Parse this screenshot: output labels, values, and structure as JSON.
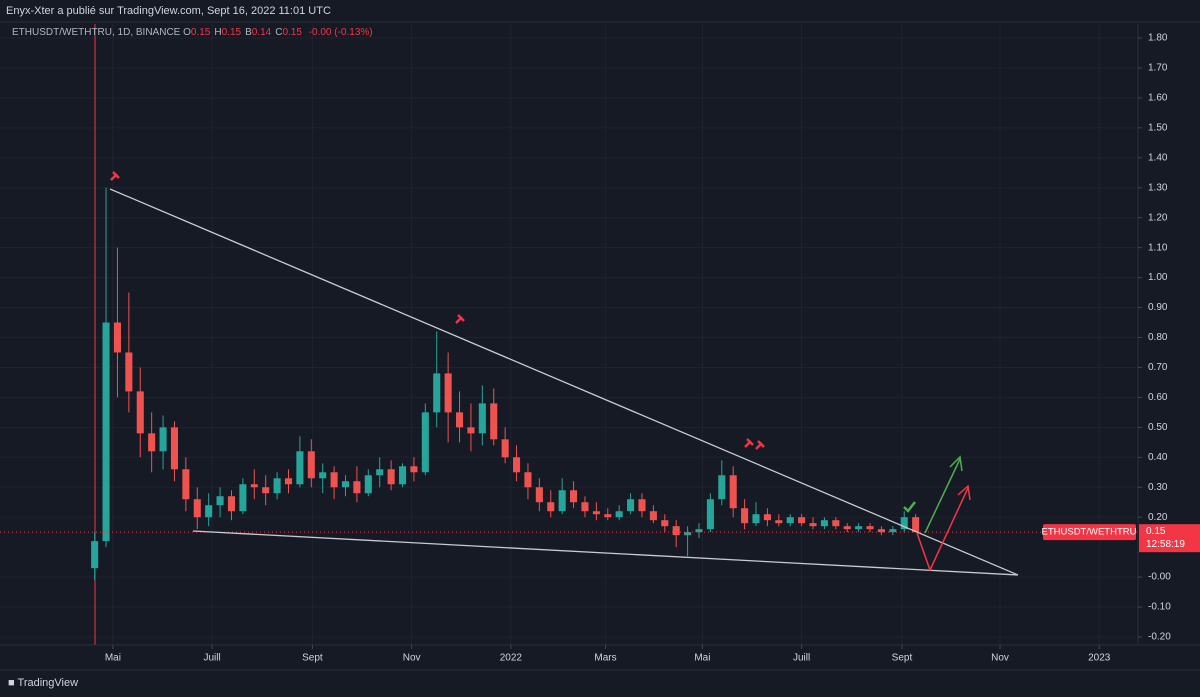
{
  "header": {
    "publisher": "Enyx-Xter a publié sur TradingView.com, Sept 16, 2022 11:01 UTC",
    "symbol": "ETHUSDT/WETHTRU, 1D, BINANCE",
    "ohlc": [
      {
        "key": "O",
        "value": "0.15"
      },
      {
        "key": "H",
        "value": "0.15"
      },
      {
        "key": "B",
        "value": "0.14"
      },
      {
        "key": "C",
        "value": "0.15"
      }
    ],
    "change": "-0.00 (-0.13%)"
  },
  "footer": {
    "brand": "TradingView"
  },
  "chart_data": {
    "type": "candlestick",
    "x": [
      0,
      1,
      2,
      3,
      4,
      5,
      6,
      7,
      8,
      9,
      10,
      11,
      12,
      13,
      14,
      15,
      16,
      17,
      18,
      19,
      20,
      21,
      22,
      23,
      24,
      25,
      26,
      27,
      28,
      29,
      30,
      31,
      32,
      33,
      34,
      35,
      36,
      37,
      38,
      39,
      40,
      41,
      42,
      43,
      44,
      45,
      46,
      47,
      48,
      49,
      50,
      51,
      52,
      53,
      54,
      55,
      56,
      57,
      58,
      59,
      60,
      61,
      62,
      63,
      64,
      65,
      66,
      67,
      68,
      69,
      70,
      71,
      72
    ],
    "open": [
      0.03,
      0.12,
      0.85,
      0.75,
      0.62,
      0.48,
      0.42,
      0.5,
      0.36,
      0.26,
      0.2,
      0.24,
      0.27,
      0.22,
      0.31,
      0.3,
      0.28,
      0.33,
      0.31,
      0.42,
      0.33,
      0.35,
      0.3,
      0.32,
      0.28,
      0.34,
      0.36,
      0.31,
      0.37,
      0.35,
      0.55,
      0.68,
      0.55,
      0.5,
      0.48,
      0.58,
      0.46,
      0.4,
      0.35,
      0.3,
      0.25,
      0.22,
      0.29,
      0.25,
      0.22,
      0.21,
      0.2,
      0.22,
      0.26,
      0.22,
      0.19,
      0.17,
      0.14,
      0.15,
      0.16,
      0.26,
      0.34,
      0.23,
      0.18,
      0.21,
      0.19,
      0.18,
      0.2,
      0.18,
      0.17,
      0.19,
      0.17,
      0.16,
      0.17,
      0.16,
      0.15,
      0.16,
      0.2
    ],
    "high": [
      0.15,
      1.3,
      1.1,
      0.95,
      0.7,
      0.55,
      0.54,
      0.52,
      0.4,
      0.3,
      0.28,
      0.3,
      0.29,
      0.33,
      0.36,
      0.34,
      0.35,
      0.36,
      0.47,
      0.46,
      0.38,
      0.37,
      0.34,
      0.37,
      0.36,
      0.4,
      0.39,
      0.38,
      0.4,
      0.58,
      0.82,
      0.75,
      0.62,
      0.58,
      0.64,
      0.63,
      0.5,
      0.44,
      0.38,
      0.33,
      0.29,
      0.33,
      0.32,
      0.27,
      0.25,
      0.23,
      0.24,
      0.28,
      0.28,
      0.24,
      0.21,
      0.19,
      0.17,
      0.18,
      0.28,
      0.39,
      0.37,
      0.26,
      0.25,
      0.23,
      0.21,
      0.21,
      0.21,
      0.2,
      0.2,
      0.2,
      0.18,
      0.18,
      0.18,
      0.17,
      0.17,
      0.22,
      0.21
    ],
    "low": [
      -0.01,
      0.1,
      0.6,
      0.55,
      0.4,
      0.35,
      0.36,
      0.32,
      0.22,
      0.16,
      0.17,
      0.2,
      0.19,
      0.21,
      0.26,
      0.24,
      0.26,
      0.28,
      0.3,
      0.3,
      0.28,
      0.26,
      0.27,
      0.25,
      0.27,
      0.3,
      0.29,
      0.3,
      0.32,
      0.34,
      0.5,
      0.45,
      0.45,
      0.42,
      0.44,
      0.44,
      0.38,
      0.32,
      0.26,
      0.22,
      0.2,
      0.21,
      0.23,
      0.2,
      0.19,
      0.19,
      0.19,
      0.21,
      0.2,
      0.18,
      0.15,
      0.1,
      0.07,
      0.13,
      0.15,
      0.24,
      0.2,
      0.16,
      0.17,
      0.17,
      0.17,
      0.17,
      0.17,
      0.16,
      0.16,
      0.16,
      0.15,
      0.15,
      0.15,
      0.14,
      0.14,
      0.15,
      0.15
    ],
    "close": [
      0.12,
      0.85,
      0.75,
      0.62,
      0.48,
      0.42,
      0.5,
      0.36,
      0.26,
      0.2,
      0.24,
      0.27,
      0.22,
      0.31,
      0.3,
      0.28,
      0.33,
      0.31,
      0.42,
      0.33,
      0.35,
      0.3,
      0.32,
      0.28,
      0.34,
      0.36,
      0.31,
      0.37,
      0.35,
      0.55,
      0.68,
      0.55,
      0.5,
      0.48,
      0.58,
      0.46,
      0.4,
      0.35,
      0.3,
      0.25,
      0.22,
      0.29,
      0.25,
      0.22,
      0.21,
      0.2,
      0.22,
      0.26,
      0.22,
      0.19,
      0.17,
      0.14,
      0.15,
      0.16,
      0.26,
      0.34,
      0.23,
      0.18,
      0.21,
      0.19,
      0.18,
      0.2,
      0.18,
      0.17,
      0.19,
      0.17,
      0.16,
      0.17,
      0.16,
      0.15,
      0.16,
      0.2,
      0.15
    ],
    "up_color": "#26a69a",
    "down_color": "#ef5350",
    "xlim": [
      -8.3,
      91.5
    ],
    "xticks": [
      {
        "value": 1.6,
        "label": "Mai"
      },
      {
        "value": 10.3,
        "label": "Juill"
      },
      {
        "value": 19.1,
        "label": "Sept"
      },
      {
        "value": 27.8,
        "label": "Nov"
      },
      {
        "value": 36.5,
        "label": "2022"
      },
      {
        "value": 44.8,
        "label": "Mars"
      },
      {
        "value": 53.3,
        "label": "Mai"
      },
      {
        "value": 62,
        "label": "Juill"
      },
      {
        "value": 70.8,
        "label": "Sept"
      },
      {
        "value": 79.4,
        "label": "Nov"
      },
      {
        "value": 88.1,
        "label": "2023"
      }
    ],
    "ylim": [
      -0.2,
      1.8
    ],
    "yticks": [
      {
        "value": 1.8,
        "label": "1.80"
      },
      {
        "value": 1.7,
        "label": "1.70"
      },
      {
        "value": 1.6,
        "label": "1.60"
      },
      {
        "value": 1.5,
        "label": "1.50"
      },
      {
        "value": 1.4,
        "label": "1.40"
      },
      {
        "value": 1.3,
        "label": "1.30"
      },
      {
        "value": 1.2,
        "label": "1.20"
      },
      {
        "value": 1.1,
        "label": "1.10"
      },
      {
        "value": 1.0,
        "label": "1.00"
      },
      {
        "value": 0.9,
        "label": "0.90"
      },
      {
        "value": 0.8,
        "label": "0.80"
      },
      {
        "value": 0.7,
        "label": "0.70"
      },
      {
        "value": 0.6,
        "label": "0.60"
      },
      {
        "value": 0.5,
        "label": "0.50"
      },
      {
        "value": 0.4,
        "label": "0.40"
      },
      {
        "value": 0.3,
        "label": "0.30"
      },
      {
        "value": 0.2,
        "label": "0.20"
      },
      {
        "value": 0,
        "label": "-0.00"
      },
      {
        "value": -0.1,
        "label": "-0.10"
      },
      {
        "value": -0.2,
        "label": "-0.20"
      }
    ],
    "grid": true,
    "last_price": 0.15,
    "price_tag": "ETHUSDT/WETHTRU",
    "countdown": "12:58:19",
    "price_color": "#f23645"
  }
}
